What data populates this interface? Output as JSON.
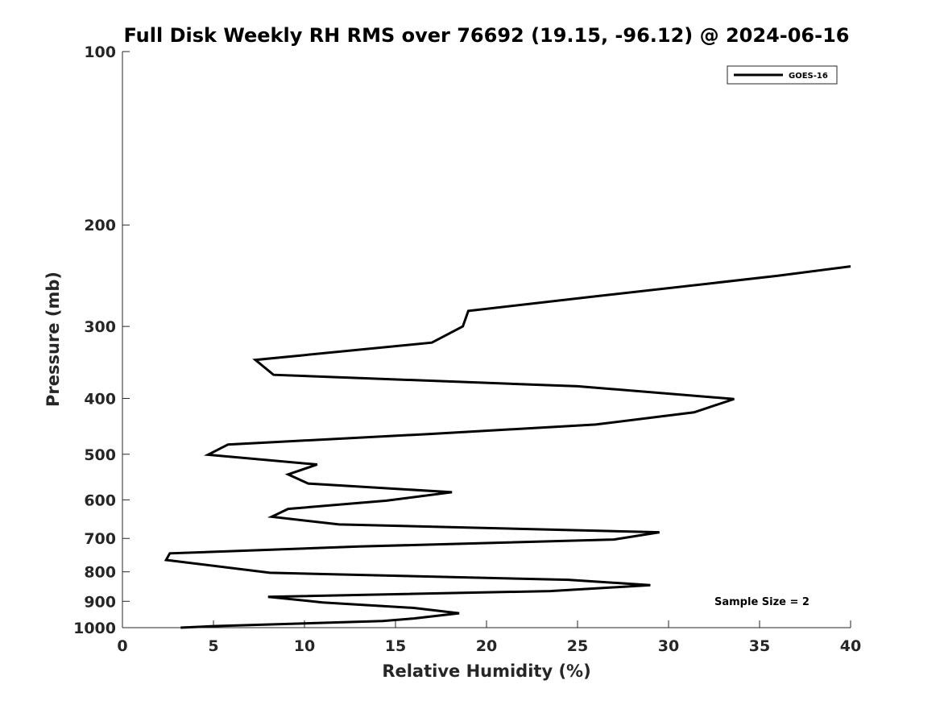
{
  "chart_data": {
    "type": "line",
    "title": "Full Disk Weekly RH RMS over 76692 (19.15, -96.12) @ 2024-06-16",
    "xlabel": "Relative Humidity (%)",
    "ylabel": "Pressure (mb)",
    "xlim": [
      0,
      40
    ],
    "ylim": [
      100,
      1000
    ],
    "y_scale": "log",
    "y_reversed": true,
    "x_ticks": [
      0,
      5,
      10,
      15,
      20,
      25,
      30,
      35,
      40
    ],
    "y_ticks": [
      100,
      200,
      300,
      400,
      500,
      600,
      700,
      800,
      900,
      1000
    ],
    "legend_position": "top-right",
    "grid": false,
    "series": [
      {
        "name": "GOES-16",
        "color": "#000000",
        "points": [
          {
            "rh": 40.0,
            "p": 236
          },
          {
            "rh": 36.0,
            "p": 245
          },
          {
            "rh": 26.0,
            "p": 266
          },
          {
            "rh": 19.0,
            "p": 282
          },
          {
            "rh": 18.7,
            "p": 300
          },
          {
            "rh": 17.0,
            "p": 320
          },
          {
            "rh": 7.3,
            "p": 343
          },
          {
            "rh": 8.3,
            "p": 364
          },
          {
            "rh": 25.0,
            "p": 381
          },
          {
            "rh": 33.6,
            "p": 401
          },
          {
            "rh": 31.4,
            "p": 423
          },
          {
            "rh": 26.0,
            "p": 444
          },
          {
            "rh": 17.0,
            "p": 461
          },
          {
            "rh": 5.8,
            "p": 481
          },
          {
            "rh": 4.7,
            "p": 501
          },
          {
            "rh": 10.7,
            "p": 521
          },
          {
            "rh": 9.1,
            "p": 542
          },
          {
            "rh": 10.2,
            "p": 562
          },
          {
            "rh": 18.1,
            "p": 582
          },
          {
            "rh": 14.5,
            "p": 602
          },
          {
            "rh": 9.1,
            "p": 622
          },
          {
            "rh": 8.2,
            "p": 642
          },
          {
            "rh": 11.9,
            "p": 662
          },
          {
            "rh": 29.5,
            "p": 683
          },
          {
            "rh": 27.0,
            "p": 703
          },
          {
            "rh": 13.0,
            "p": 723
          },
          {
            "rh": 2.6,
            "p": 743
          },
          {
            "rh": 2.4,
            "p": 763
          },
          {
            "rh": 8.1,
            "p": 803
          },
          {
            "rh": 24.5,
            "p": 826
          },
          {
            "rh": 29.0,
            "p": 844
          },
          {
            "rh": 23.5,
            "p": 864
          },
          {
            "rh": 8.0,
            "p": 884
          },
          {
            "rh": 11.0,
            "p": 904
          },
          {
            "rh": 16.0,
            "p": 924
          },
          {
            "rh": 18.5,
            "p": 944
          },
          {
            "rh": 16.0,
            "p": 964
          },
          {
            "rh": 14.3,
            "p": 974
          },
          {
            "rh": 5.0,
            "p": 994
          },
          {
            "rh": 3.2,
            "p": 1000
          }
        ]
      }
    ],
    "annotations": [
      {
        "text": "Sample Size = 2"
      }
    ]
  }
}
